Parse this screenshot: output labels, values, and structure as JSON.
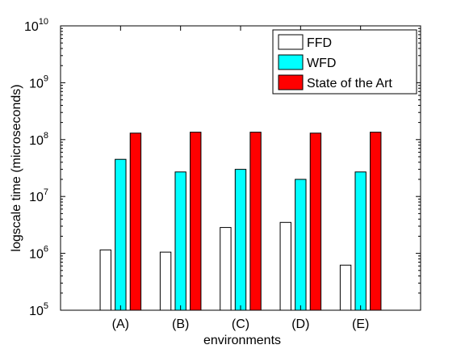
{
  "chart_data": {
    "type": "bar",
    "title": "",
    "xlabel": "environments",
    "ylabel": "logscale time (microseconds)",
    "yscale": "log",
    "ylim": [
      100000,
      10000000000
    ],
    "y_ticks": [
      {
        "value": 100000,
        "base": "10",
        "exp": "5"
      },
      {
        "value": 1000000,
        "base": "10",
        "exp": "6"
      },
      {
        "value": 10000000,
        "base": "10",
        "exp": "7"
      },
      {
        "value": 100000000,
        "base": "10",
        "exp": "8"
      },
      {
        "value": 1000000000,
        "base": "10",
        "exp": "9"
      },
      {
        "value": 10000000000,
        "base": "10",
        "exp": "10"
      }
    ],
    "categories": [
      "(A)",
      "(B)",
      "(C)",
      "(D)",
      "(E)"
    ],
    "legend_position": "top-right",
    "grid": false,
    "series": [
      {
        "name": "FFD",
        "color": "#ffffff",
        "values": [
          1150000,
          1050000,
          2850000,
          3500000,
          620000
        ]
      },
      {
        "name": "WFD",
        "color": "#00ffff",
        "values": [
          45000000,
          27000000,
          30000000,
          20000000,
          27000000
        ]
      },
      {
        "name": "State of the Art",
        "color": "#ff0000",
        "values": [
          130000000,
          135000000,
          135000000,
          130000000,
          135000000
        ]
      }
    ]
  }
}
